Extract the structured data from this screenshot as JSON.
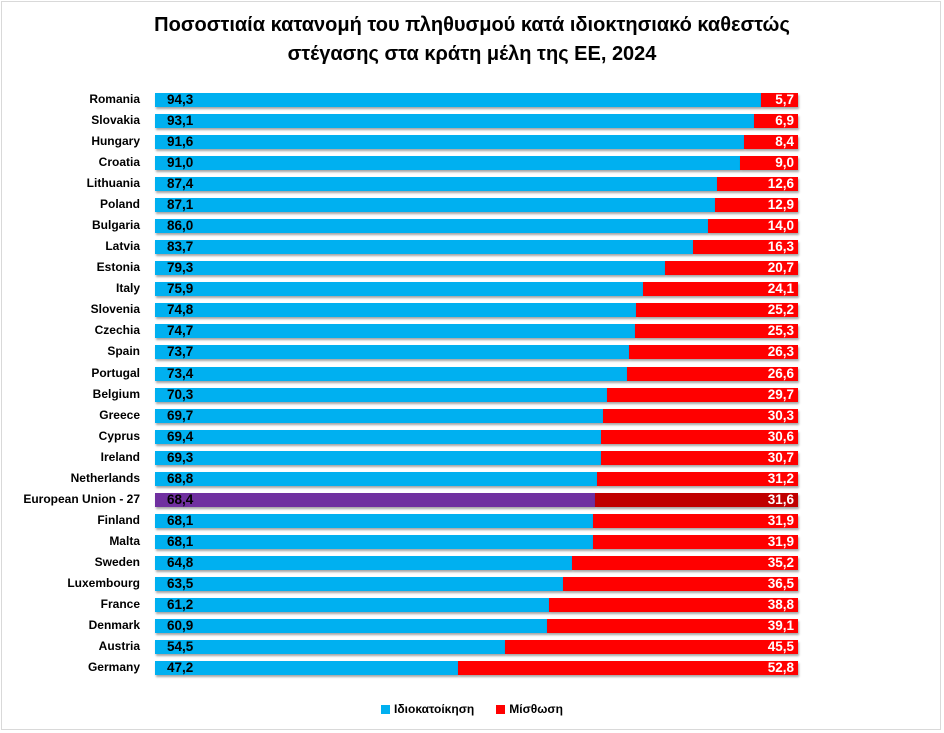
{
  "chart_data": {
    "type": "bar",
    "orientation": "horizontal-stacked-100",
    "title_line1": "Ποσοστιαία κατανομή του πληθυσμού κατά ιδιοκτησιακό καθεστώς",
    "title_line2": "στέγασης στα κράτη μέλη της ΕΕ, 2024",
    "categories": [
      "Romania",
      "Slovakia",
      "Hungary",
      "Croatia",
      "Lithuania",
      "Poland",
      "Bulgaria",
      "Latvia",
      "Estonia",
      "Italy",
      "Slovenia",
      "Czechia",
      "Spain",
      "Portugal",
      "Belgium",
      "Greece",
      "Cyprus",
      "Ireland",
      "Netherlands",
      "European Union - 27",
      "Finland",
      "Malta",
      "Sweden",
      "Luxembourg",
      "France",
      "Denmark",
      "Austria",
      "Germany"
    ],
    "series": [
      {
        "name": "Ιδιοκατοίκηση",
        "color": "#00b0f0",
        "highlight_color": "#7030a0",
        "values": [
          94.3,
          93.1,
          91.6,
          91.0,
          87.4,
          87.1,
          86.0,
          83.7,
          79.3,
          75.9,
          74.8,
          74.7,
          73.7,
          73.4,
          70.3,
          69.7,
          69.4,
          69.3,
          68.8,
          68.4,
          68.1,
          68.1,
          64.8,
          63.5,
          61.2,
          60.9,
          54.5,
          47.2
        ],
        "labels": [
          "94,3",
          "93,1",
          "91,6",
          "91,0",
          "87,4",
          "87,1",
          "86,0",
          "83,7",
          "79,3",
          "75,9",
          "74,8",
          "74,7",
          "73,7",
          "73,4",
          "70,3",
          "69,7",
          "69,4",
          "69,3",
          "68,8",
          "68,4",
          "68,1",
          "68,1",
          "64,8",
          "63,5",
          "61,2",
          "60,9",
          "54,5",
          "47,2"
        ]
      },
      {
        "name": "Μίσθωση",
        "color": "#ff0000",
        "highlight_color": "#c00000",
        "values": [
          5.7,
          6.9,
          8.4,
          9.0,
          12.6,
          12.9,
          14.0,
          16.3,
          20.7,
          24.1,
          25.2,
          25.3,
          26.3,
          26.6,
          29.7,
          30.3,
          30.6,
          30.7,
          31.2,
          31.6,
          31.9,
          31.9,
          35.2,
          36.5,
          38.8,
          39.1,
          45.5,
          52.8
        ],
        "labels": [
          "5,7",
          "6,9",
          "8,4",
          "9,0",
          "12,6",
          "12,9",
          "14,0",
          "16,3",
          "20,7",
          "24,1",
          "25,2",
          "25,3",
          "26,3",
          "26,6",
          "29,7",
          "30,3",
          "30,6",
          "30,7",
          "31,2",
          "31,6",
          "31,9",
          "31,9",
          "35,2",
          "36,5",
          "38,8",
          "39,1",
          "45,5",
          "52,8"
        ]
      }
    ],
    "highlight_category": "European Union - 27",
    "xlim": [
      0,
      100
    ],
    "legend_position": "bottom"
  }
}
